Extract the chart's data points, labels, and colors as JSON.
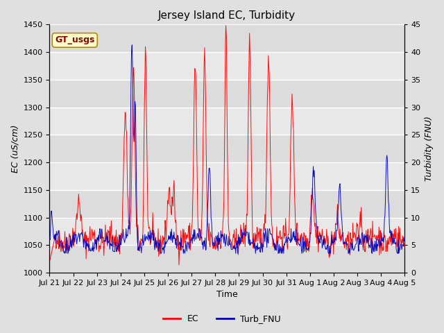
{
  "title": "Jersey Island EC, Turbidity",
  "xlabel": "Time",
  "ylabel_left": "EC (uS/cm)",
  "ylabel_right": "Turbidity (FNU)",
  "annotation": "GT_usgs",
  "ylim_left": [
    1000,
    1450
  ],
  "ylim_right": [
    0,
    45
  ],
  "yticks_left": [
    1000,
    1050,
    1100,
    1150,
    1200,
    1250,
    1300,
    1350,
    1400,
    1450
  ],
  "yticks_right": [
    0,
    5,
    10,
    15,
    20,
    25,
    30,
    35,
    40,
    45
  ],
  "ec_color": "#FF0000",
  "turb_color": "#0000BB",
  "background_color": "#E0E0E0",
  "plot_bg_color": "#E8E8E8",
  "grid_color": "#FFFFFF",
  "band_colors": [
    "#DCDCDC",
    "#E8E8E8"
  ],
  "title_fontsize": 11,
  "axis_label_fontsize": 9,
  "tick_fontsize": 8,
  "legend_fontsize": 9,
  "x_tick_labels": [
    "Jul 21",
    "Jul 22",
    "Jul 23",
    "Jul 24",
    "Jul 25",
    "Jul 26",
    "Jul 27",
    "Jul 28",
    "Jul 29",
    "Jul 30",
    "Jul 31",
    "Aug 1",
    "Aug 2",
    "Aug 3",
    "Aug 4",
    "Aug 5"
  ],
  "n_points": 720
}
